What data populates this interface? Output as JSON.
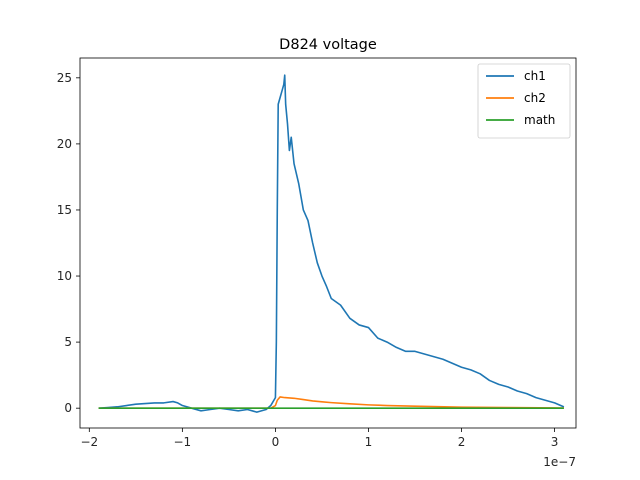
{
  "chart_data": {
    "type": "line",
    "title": "D824 voltage",
    "xlabel": "",
    "ylabel": "",
    "x_offset_label": "1e−7",
    "xlim": [
      -2.1,
      3.23
    ],
    "ylim": [
      -1.5,
      26.5
    ],
    "xticks": [
      -2,
      -1,
      0,
      1,
      2,
      3
    ],
    "xtick_labels": [
      "−2",
      "−1",
      "0",
      "1",
      "2",
      "3"
    ],
    "yticks": [
      0,
      5,
      10,
      15,
      20,
      25
    ],
    "ytick_labels": [
      "0",
      "5",
      "10",
      "15",
      "20",
      "25"
    ],
    "grid": false,
    "legend_position": "top-right",
    "series": [
      {
        "name": "ch1",
        "color": "#1f77b4",
        "x": [
          -1.9,
          -1.8,
          -1.7,
          -1.6,
          -1.5,
          -1.4,
          -1.3,
          -1.2,
          -1.1,
          -1.05,
          -1.0,
          -0.9,
          -0.8,
          -0.7,
          -0.6,
          -0.5,
          -0.4,
          -0.3,
          -0.2,
          -0.1,
          -0.05,
          0.0,
          0.01,
          0.02,
          0.03,
          0.05,
          0.07,
          0.09,
          0.1,
          0.11,
          0.13,
          0.15,
          0.17,
          0.2,
          0.25,
          0.3,
          0.35,
          0.4,
          0.45,
          0.5,
          0.55,
          0.6,
          0.7,
          0.8,
          0.9,
          1.0,
          1.1,
          1.2,
          1.3,
          1.4,
          1.5,
          1.6,
          1.7,
          1.8,
          1.9,
          2.0,
          2.1,
          2.2,
          2.3,
          2.4,
          2.5,
          2.6,
          2.7,
          2.8,
          2.9,
          3.0,
          3.1
        ],
        "y": [
          0.0,
          0.05,
          0.1,
          0.2,
          0.3,
          0.35,
          0.4,
          0.4,
          0.5,
          0.4,
          0.2,
          0.0,
          -0.2,
          -0.1,
          0.0,
          -0.1,
          -0.2,
          -0.1,
          -0.3,
          -0.1,
          0.2,
          0.8,
          5.0,
          15.0,
          23.0,
          23.5,
          24.0,
          24.5,
          25.2,
          23.0,
          21.5,
          19.5,
          20.5,
          18.5,
          17.0,
          15.0,
          14.2,
          12.5,
          11.0,
          10.0,
          9.2,
          8.3,
          7.8,
          6.8,
          6.3,
          6.1,
          5.3,
          5.0,
          4.6,
          4.3,
          4.3,
          4.1,
          3.9,
          3.7,
          3.4,
          3.1,
          2.9,
          2.6,
          2.1,
          1.8,
          1.6,
          1.3,
          1.1,
          0.8,
          0.6,
          0.4,
          0.1
        ]
      },
      {
        "name": "ch2",
        "color": "#ff7f0e",
        "x": [
          -1.9,
          -1.5,
          -1.0,
          -0.5,
          -0.2,
          -0.05,
          0.0,
          0.02,
          0.05,
          0.1,
          0.2,
          0.3,
          0.4,
          0.5,
          0.6,
          0.8,
          1.0,
          1.2,
          1.5,
          2.0,
          2.5,
          3.0,
          3.1
        ],
        "y": [
          0.0,
          0.0,
          0.0,
          0.0,
          0.0,
          0.0,
          0.2,
          0.6,
          0.85,
          0.8,
          0.75,
          0.65,
          0.55,
          0.48,
          0.42,
          0.33,
          0.25,
          0.2,
          0.15,
          0.08,
          0.05,
          0.02,
          0.01
        ]
      },
      {
        "name": "math",
        "color": "#2ca02c",
        "x": [
          -1.9,
          3.1
        ],
        "y": [
          0.0,
          0.0
        ]
      }
    ]
  }
}
